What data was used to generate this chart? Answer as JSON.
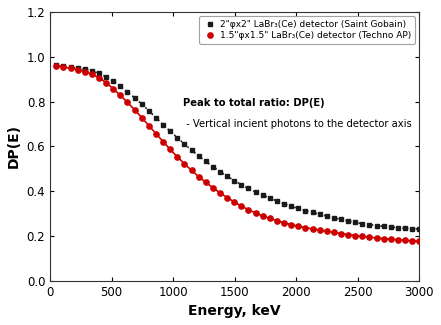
{
  "title": "",
  "xlabel": "Energy, keV",
  "ylabel": "DP(E)",
  "xlim": [
    0,
    3000
  ],
  "ylim": [
    0.0,
    1.2
  ],
  "yticks": [
    0.0,
    0.2,
    0.4,
    0.6,
    0.8,
    1.0,
    1.2
  ],
  "xticks": [
    0,
    500,
    1000,
    1500,
    2000,
    2500,
    3000
  ],
  "annotation_line1": "Peak to total ratio: DP(E)",
  "annotation_line2": " - Vertical incient photons to the detector axis",
  "legend1": "2\"φx2\" LaBr₃(Ce) detector (Saint Gobain)",
  "legend2": "1.5\"φx1.5\" LaBr₃(Ce) detector (Techno AP)",
  "color1": "#1a1a1a",
  "color2": "#cc0000",
  "background_color": "#ffffff",
  "knots_large_E": [
    50,
    100,
    200,
    300,
    400,
    500,
    600,
    700,
    800,
    900,
    1000,
    1200,
    1400,
    1600,
    1800,
    2000,
    2200,
    2500,
    2700,
    3000
  ],
  "knots_large_Y": [
    0.965,
    0.958,
    0.95,
    0.942,
    0.925,
    0.895,
    0.855,
    0.81,
    0.76,
    0.706,
    0.655,
    0.56,
    0.48,
    0.415,
    0.365,
    0.325,
    0.295,
    0.258,
    0.243,
    0.23
  ],
  "knots_small_E": [
    50,
    100,
    200,
    300,
    400,
    500,
    600,
    700,
    800,
    900,
    1000,
    1200,
    1400,
    1600,
    1800,
    2000,
    2200,
    2500,
    2700,
    3000
  ],
  "knots_small_Y": [
    0.96,
    0.955,
    0.945,
    0.93,
    0.905,
    0.863,
    0.812,
    0.755,
    0.694,
    0.632,
    0.572,
    0.468,
    0.385,
    0.32,
    0.275,
    0.245,
    0.225,
    0.2,
    0.188,
    0.176
  ]
}
